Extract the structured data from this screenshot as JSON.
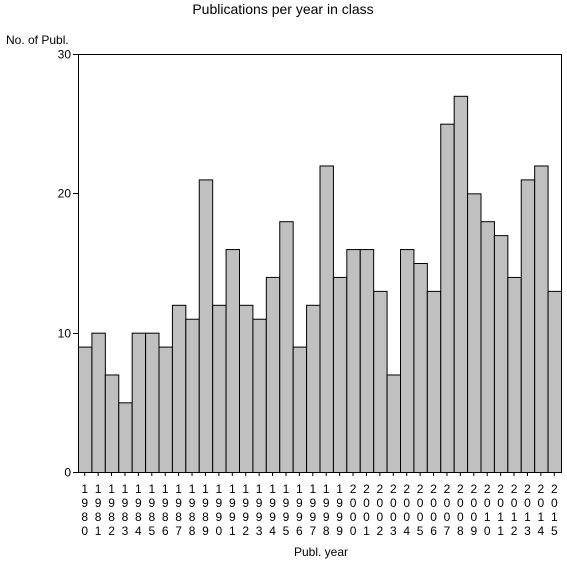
{
  "chart_data": {
    "type": "bar",
    "title": "Publications per year in class",
    "ylabel": "No. of Publ.",
    "xlabel": "Publ. year",
    "ylim": [
      0,
      30
    ],
    "yticks": [
      0,
      10,
      20,
      30
    ],
    "grid": false,
    "categories": [
      "1980",
      "1981",
      "1982",
      "1983",
      "1984",
      "1985",
      "1986",
      "1987",
      "1988",
      "1989",
      "1990",
      "1991",
      "1992",
      "1993",
      "1994",
      "1995",
      "1996",
      "1997",
      "1998",
      "1999",
      "2000",
      "2001",
      "2002",
      "2003",
      "2004",
      "2005",
      "2006",
      "2007",
      "2008",
      "2009",
      "2010",
      "2011",
      "2012",
      "2013",
      "2014",
      "2015"
    ],
    "values": [
      9,
      10,
      7,
      5,
      10,
      10,
      9,
      12,
      11,
      21,
      12,
      16,
      12,
      11,
      14,
      18,
      9,
      12,
      22,
      14,
      16,
      16,
      13,
      7,
      16,
      15,
      13,
      25,
      27,
      20,
      18,
      17,
      14,
      21,
      22,
      13
    ],
    "bar_color": "#c0c0c0",
    "edge_color": "#000000"
  }
}
